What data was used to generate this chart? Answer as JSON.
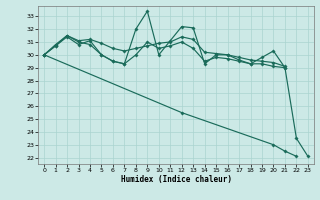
{
  "xlabel": "Humidex (Indice chaleur)",
  "bg_color": "#cce9e6",
  "line_color": "#1a6b5a",
  "grid_color": "#aad4d0",
  "ylim": [
    21.5,
    33.8
  ],
  "xlim": [
    -0.5,
    23.5
  ],
  "yticks": [
    22,
    23,
    24,
    25,
    26,
    27,
    28,
    29,
    30,
    31,
    32,
    33
  ],
  "xticks": [
    0,
    1,
    2,
    3,
    4,
    5,
    6,
    7,
    8,
    9,
    10,
    11,
    12,
    13,
    14,
    15,
    16,
    17,
    18,
    19,
    20,
    21,
    22,
    23
  ],
  "series": [
    {
      "x": [
        0,
        1,
        2,
        3,
        4,
        5,
        6,
        7,
        8,
        9,
        10,
        11,
        12,
        13,
        14,
        15,
        16,
        17,
        18,
        19,
        20,
        21
      ],
      "y": [
        30.0,
        30.7,
        31.4,
        30.8,
        31.1,
        30.0,
        29.5,
        29.3,
        32.0,
        33.4,
        30.0,
        31.1,
        32.2,
        32.1,
        29.3,
        30.0,
        30.0,
        29.6,
        29.3,
        29.8,
        30.3,
        29.0
      ]
    },
    {
      "x": [
        0,
        1,
        2,
        3,
        4,
        5,
        6,
        7,
        8,
        9,
        10,
        11,
        12,
        13,
        14,
        15,
        16,
        17,
        18,
        19,
        20,
        21
      ],
      "y": [
        30.0,
        30.8,
        31.5,
        31.1,
        31.2,
        30.9,
        30.5,
        30.3,
        30.5,
        30.7,
        30.9,
        31.0,
        31.4,
        31.2,
        30.2,
        30.1,
        30.0,
        29.8,
        29.6,
        29.5,
        29.4,
        29.1
      ]
    },
    {
      "x": [
        0,
        1,
        2,
        3,
        4,
        5,
        6,
        7,
        8,
        9,
        10,
        11,
        12,
        13,
        14,
        15,
        16,
        17,
        18,
        19,
        20,
        21,
        22,
        23
      ],
      "y": [
        30.0,
        30.7,
        31.5,
        31.0,
        30.8,
        30.0,
        29.5,
        29.3,
        30.0,
        31.0,
        30.5,
        30.7,
        31.0,
        30.5,
        29.5,
        29.8,
        29.7,
        29.5,
        29.3,
        29.3,
        29.1,
        29.0,
        23.5,
        22.1
      ]
    },
    {
      "x": [
        0,
        12,
        20,
        21,
        22
      ],
      "y": [
        30.0,
        25.5,
        23.0,
        22.5,
        22.1
      ]
    }
  ]
}
